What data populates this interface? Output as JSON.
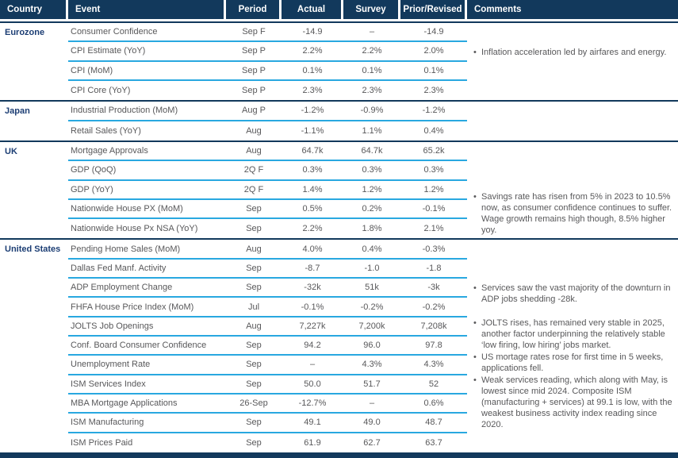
{
  "colors": {
    "header_bg": "#12395c",
    "group_divider": "#12395c",
    "row_divider_cyan": "#29a8e0",
    "country_text": "#1c3e74",
    "body_text": "#58585a",
    "header_text": "#ffffff"
  },
  "header": {
    "country": "Country",
    "event": "Event",
    "period": "Period",
    "actual": "Actual",
    "survey": "Survey",
    "prior": "Prior/Revised",
    "comments": "Comments"
  },
  "groups": [
    {
      "country": "Eurozone",
      "rows": [
        {
          "event": "Consumer Confidence",
          "period": "Sep F",
          "actual": "-14.9",
          "survey": "–",
          "prior": "-14.9"
        },
        {
          "event": "CPI Estimate (YoY)",
          "period": "Sep P",
          "actual": "2.2%",
          "survey": "2.2%",
          "prior": "2.0%"
        },
        {
          "event": "CPI (MoM)",
          "period": "Sep P",
          "actual": "0.1%",
          "survey": "0.1%",
          "prior": "0.1%"
        },
        {
          "event": "CPI Core (YoY)",
          "period": "Sep P",
          "actual": "2.3%",
          "survey": "2.3%",
          "prior": "2.3%"
        }
      ],
      "comments": [
        "Inflation acceleration led by airfares and energy."
      ]
    },
    {
      "country": "Japan",
      "rows": [
        {
          "event": "Industrial Production (MoM)",
          "period": "Aug P",
          "actual": "-1.2%",
          "survey": "-0.9%",
          "prior": "-1.2%"
        },
        {
          "event": "Retail Sales (YoY)",
          "period": "Aug",
          "actual": "-1.1%",
          "survey": "1.1%",
          "prior": "0.4%"
        }
      ],
      "comments": []
    },
    {
      "country": "UK",
      "rows": [
        {
          "event": "Mortgage Approvals",
          "period": "Aug",
          "actual": "64.7k",
          "survey": "64.7k",
          "prior": "65.2k"
        },
        {
          "event": "GDP (QoQ)",
          "period": "2Q F",
          "actual": "0.3%",
          "survey": "0.3%",
          "prior": "0.3%"
        },
        {
          "event": "GDP (YoY)",
          "period": "2Q F",
          "actual": "1.4%",
          "survey": "1.2%",
          "prior": "1.2%"
        },
        {
          "event": "Nationwide House PX (MoM)",
          "period": "Sep",
          "actual": "0.5%",
          "survey": "0.2%",
          "prior": "-0.1%"
        },
        {
          "event": "Nationwide House Px NSA (YoY)",
          "period": "Sep",
          "actual": "2.2%",
          "survey": "1.8%",
          "prior": "2.1%"
        }
      ],
      "comments": [
        "Savings rate has risen from 5% in 2023 to 10.5% now, as consumer confidence continues to suffer. Wage growth remains high though, 8.5% higher yoy."
      ]
    },
    {
      "country": "United States",
      "rows": [
        {
          "event": "Pending Home Sales (MoM)",
          "period": "Aug",
          "actual": "4.0%",
          "survey": "0.4%",
          "prior": "-0.3%"
        },
        {
          "event": "Dallas Fed Manf. Activity",
          "period": "Sep",
          "actual": "-8.7",
          "survey": "-1.0",
          "prior": "-1.8"
        },
        {
          "event": "ADP Employment Change",
          "period": "Sep",
          "actual": "-32k",
          "survey": "51k",
          "prior": "-3k"
        },
        {
          "event": "FHFA House Price Index (MoM)",
          "period": "Jul",
          "actual": "-0.1%",
          "survey": "-0.2%",
          "prior": "-0.2%"
        },
        {
          "event": "JOLTS Job Openings",
          "period": "Aug",
          "actual": "7,227k",
          "survey": "7,200k",
          "prior": "7,208k"
        },
        {
          "event": "Conf. Board Consumer Confidence",
          "period": "Sep",
          "actual": "94.2",
          "survey": "96.0",
          "prior": "97.8"
        },
        {
          "event": "Unemployment Rate",
          "period": "Sep",
          "actual": "–",
          "survey": "4.3%",
          "prior": "4.3%"
        },
        {
          "event": "ISM Services Index",
          "period": "Sep",
          "actual": "50.0",
          "survey": "51.7",
          "prior": "52"
        },
        {
          "event": "MBA Mortgage Applications",
          "period": "26-Sep",
          "actual": "-12.7%",
          "survey": "–",
          "prior": "0.6%"
        },
        {
          "event": "ISM Manufacturing",
          "period": "Sep",
          "actual": "49.1",
          "survey": "49.0",
          "prior": "48.7"
        },
        {
          "event": "ISM Prices Paid",
          "period": "Sep",
          "actual": "61.9",
          "survey": "62.7",
          "prior": "63.7"
        }
      ],
      "comments": [
        "Services saw the vast majority of the downturn in ADP jobs shedding -28k.",
        "JOLTS rises, has remained very stable in 2025, another factor underpinning the relatively stable ‘low firing, low hiring’ jobs market.",
        "US mortage rates rose for first time in 5 weeks, applications fell.",
        "Weak services reading, which along with May, is lowest since mid 2024. Composite ISM (manufacturing + services) at 99.1 is low, with the weakest business activity index reading since 2020."
      ]
    }
  ]
}
